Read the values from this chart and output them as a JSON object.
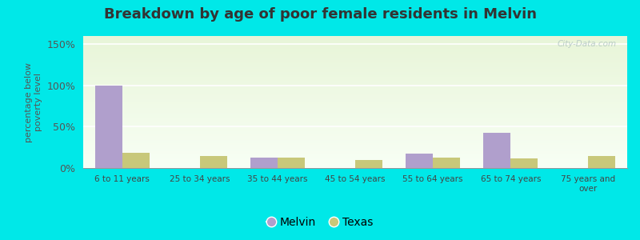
{
  "title": "Breakdown by age of poor female residents in Melvin",
  "categories": [
    "6 to 11 years",
    "25 to 34 years",
    "35 to 44 years",
    "45 to 54 years",
    "55 to 64 years",
    "65 to 74 years",
    "75 years and\nover"
  ],
  "melvin_values": [
    100,
    0,
    13,
    0,
    17,
    43,
    0
  ],
  "texas_values": [
    18,
    15,
    13,
    10,
    13,
    12,
    15
  ],
  "melvin_color": "#b09fcc",
  "texas_color": "#c8c87a",
  "ylabel": "percentage below\npoverty level",
  "ylim": [
    0,
    160
  ],
  "yticks": [
    0,
    50,
    100,
    150
  ],
  "ytick_labels": [
    "0%",
    "50%",
    "100%",
    "150%"
  ],
  "bar_width": 0.35,
  "bg_top_color": "#f5fff5",
  "bg_bottom_color": "#d8f0c8",
  "outer_background": "#00e8e8",
  "grid_color": "#ffffff",
  "watermark": "City-Data.com",
  "title_fontsize": 13,
  "axis_fontsize": 9,
  "legend_fontsize": 10
}
